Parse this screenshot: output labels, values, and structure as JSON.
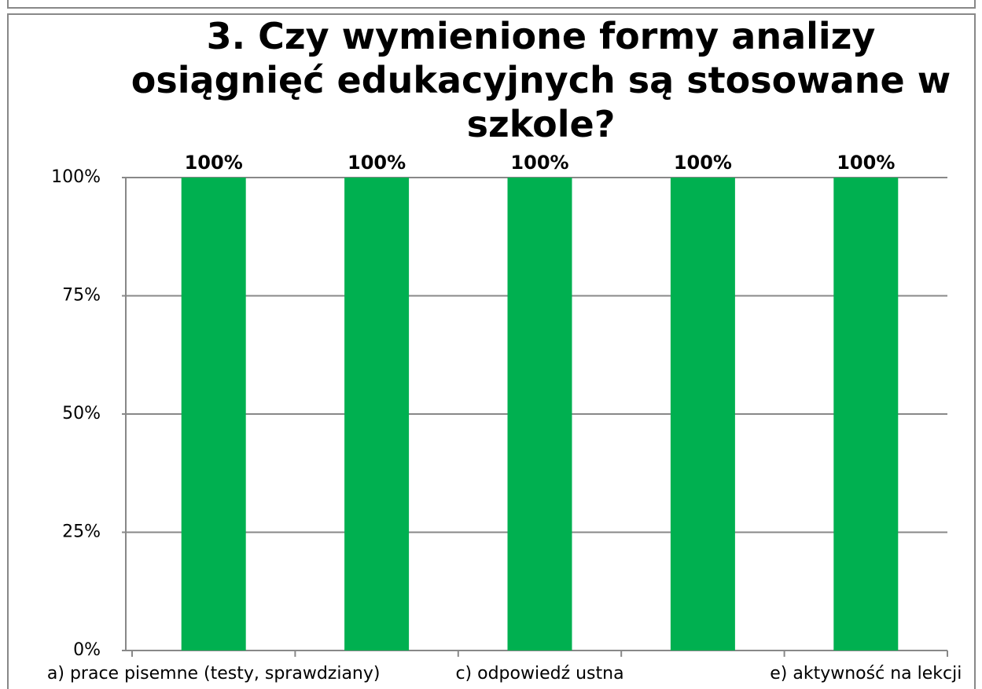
{
  "chart_data": {
    "type": "bar",
    "title": "3. Czy wymienione formy analizy osiągnięć edukacyjnych są stosowane w szkole?",
    "categories": [
      "a) prace pisemne (testy, sprawdziany)",
      null,
      "c) odpowiedź ustna",
      null,
      "e) aktywność na lekcji"
    ],
    "values": [
      100,
      100,
      100,
      100,
      100
    ],
    "value_labels": [
      "100%",
      "100%",
      "100%",
      "100%",
      "100%"
    ],
    "color": "#00b050",
    "ylim": [
      0,
      100
    ],
    "yticks": [
      {
        "value": 0,
        "label": "0%"
      },
      {
        "value": 25,
        "label": "25%"
      },
      {
        "value": 50,
        "label": "50%"
      },
      {
        "value": 75,
        "label": "75%"
      },
      {
        "value": 100,
        "label": "100%"
      }
    ],
    "grid": true
  }
}
